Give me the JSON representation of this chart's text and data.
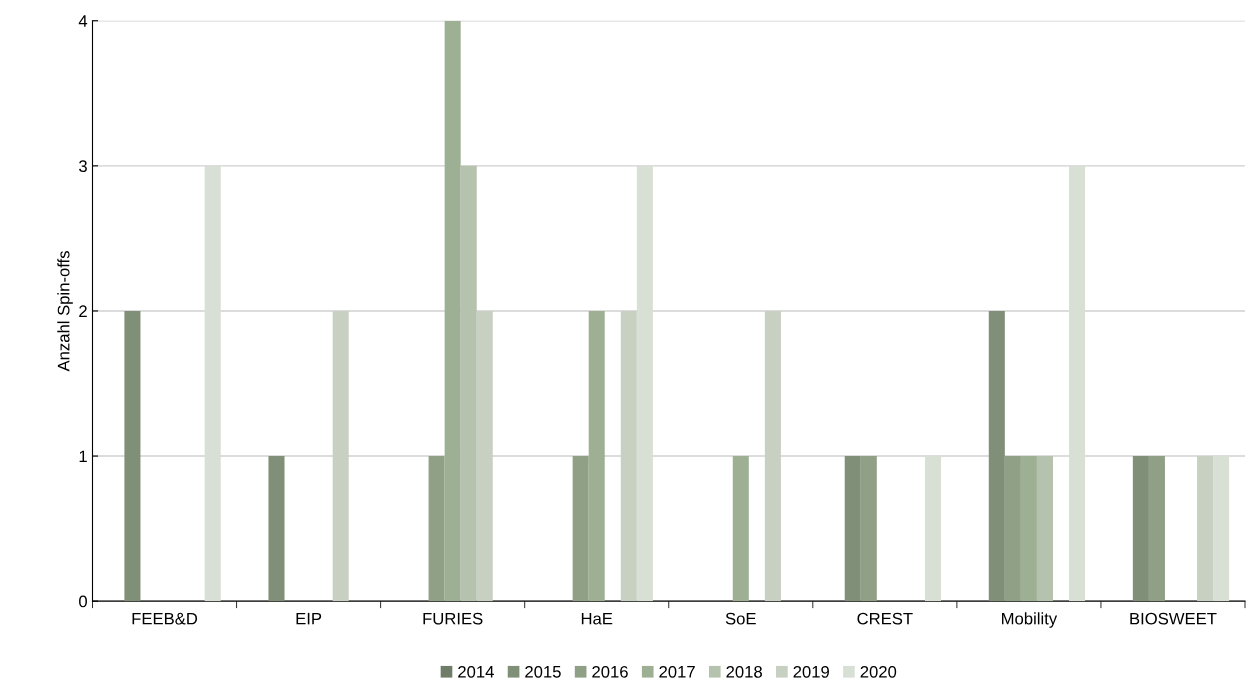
{
  "chart_data": {
    "type": "bar",
    "ylabel": "Anzahl Spin-offs",
    "categories": [
      "FEEB&D",
      "EIP",
      "FURIES",
      "HaE",
      "SoE",
      "CREST",
      "Mobility",
      "BIOSWEET"
    ],
    "series": [
      {
        "name": "2014",
        "color": "#6f7d68",
        "values": [
          null,
          null,
          null,
          null,
          null,
          null,
          null,
          null
        ]
      },
      {
        "name": "2015",
        "color": "#808f78",
        "values": [
          2,
          1,
          null,
          null,
          null,
          1,
          2,
          1
        ]
      },
      {
        "name": "2016",
        "color": "#8fa086",
        "values": [
          null,
          null,
          1,
          1,
          null,
          1,
          1,
          1
        ]
      },
      {
        "name": "2017",
        "color": "#9eb094",
        "values": [
          null,
          null,
          4,
          2,
          1,
          null,
          1,
          null
        ]
      },
      {
        "name": "2018",
        "color": "#b5c2ad",
        "values": [
          null,
          null,
          3,
          null,
          null,
          null,
          1,
          null
        ]
      },
      {
        "name": "2019",
        "color": "#c8d0c2",
        "values": [
          null,
          2,
          2,
          2,
          2,
          null,
          null,
          1
        ]
      },
      {
        "name": "2020",
        "color": "#d8dfd4",
        "values": [
          3,
          null,
          null,
          3,
          null,
          1,
          3,
          1
        ]
      }
    ],
    "ylim": [
      0,
      4
    ],
    "yticks": [
      0,
      1,
      2,
      3,
      4
    ],
    "grid": "y",
    "legend": "bottom"
  }
}
